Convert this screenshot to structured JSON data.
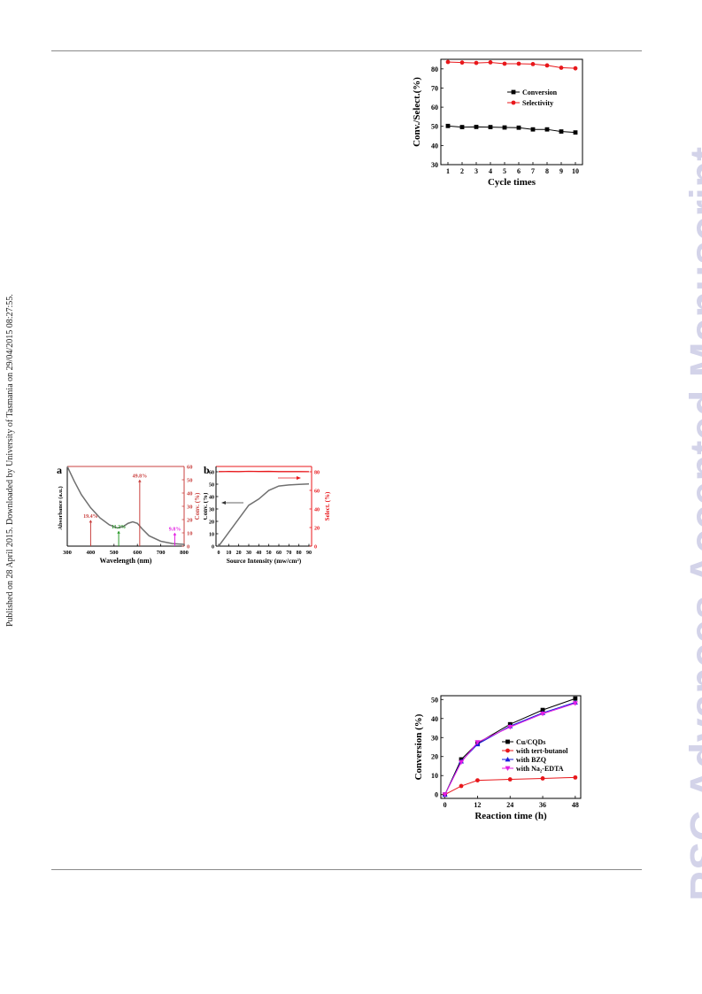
{
  "side_note": "Published on 28 April 2015. Downloaded by University of Tasmania on 29/04/2015 08:27:55.",
  "watermark": "RSC Advances Accepted Manuscript",
  "colors": {
    "black": "#000000",
    "red": "#e8171b",
    "blue": "#1a1adc",
    "magenta": "#e21ee2",
    "green": "#2a9a2a",
    "gray": "#707070",
    "spectrum_red": "#c9413f"
  },
  "chart_data": [
    {
      "id": "cycle",
      "type": "line",
      "xlabel": "Cycle times",
      "ylabel": "Conv./Select.(%)",
      "x": [
        1,
        2,
        3,
        4,
        5,
        6,
        7,
        8,
        9,
        10
      ],
      "xticks": [
        "1",
        "2",
        "3",
        "4",
        "5",
        "6",
        "7",
        "8",
        "9",
        "10"
      ],
      "ylim": [
        30,
        85
      ],
      "yticks": [
        "30",
        "40",
        "50",
        "60",
        "70",
        "80"
      ],
      "legend_position": "upper-right",
      "series": [
        {
          "name": "Conversion",
          "color": "#000000",
          "marker": "square",
          "values": [
            50.2,
            49.6,
            49.7,
            49.6,
            49.4,
            49.3,
            48.4,
            48.4,
            47.3,
            46.8
          ]
        },
        {
          "name": "Selectivity",
          "color": "#e8171b",
          "marker": "circle",
          "values": [
            83.6,
            83.3,
            83.1,
            83.4,
            82.7,
            82.7,
            82.5,
            81.8,
            80.6,
            80.3
          ]
        }
      ]
    },
    {
      "id": "panel_a",
      "type": "line",
      "panel_label": "a",
      "xlabel": "Wavelength (nm)",
      "ylabel_left": "Absorbance (a.u.)",
      "ylabel_right": "Conv. (%)",
      "xlim": [
        300,
        800
      ],
      "xticks": [
        "300",
        "400",
        "500",
        "600",
        "700",
        "800"
      ],
      "right_ylim": [
        0,
        60
      ],
      "right_yticks": [
        "0",
        "10",
        "20",
        "30",
        "40",
        "50",
        "60"
      ],
      "absorbance_curve": {
        "x": [
          300,
          330,
          360,
          400,
          440,
          480,
          515,
          540,
          560,
          580,
          600,
          620,
          650,
          700,
          750,
          800
        ],
        "y": [
          1.0,
          0.81,
          0.64,
          0.47,
          0.34,
          0.25,
          0.21,
          0.23,
          0.27,
          0.29,
          0.27,
          0.2,
          0.11,
          0.04,
          0.01,
          0.0
        ]
      },
      "bars": [
        {
          "wavelength": 400,
          "value": 19.4,
          "label": "19.4%",
          "color": "#c9413f"
        },
        {
          "wavelength": 520,
          "value": 11.2,
          "label": "11.2%",
          "color": "#2a9a2a"
        },
        {
          "wavelength": 610,
          "value": 49.8,
          "label": "49.8%",
          "color": "#c9413f"
        },
        {
          "wavelength": 760,
          "value": 9.8,
          "label": "9.8%",
          "color": "#e21ee2"
        }
      ]
    },
    {
      "id": "panel_b",
      "type": "line",
      "panel_label": "b",
      "xlabel": "Source Intensity (mw/cm²)",
      "ylabel_left": "Conv. (%)",
      "ylabel_right": "Select. (%)",
      "xlim": [
        0,
        90
      ],
      "xticks": [
        "0",
        "10",
        "20",
        "30",
        "40",
        "50",
        "60",
        "70",
        "80",
        "90"
      ],
      "left_ylim": [
        0,
        60
      ],
      "left_yticks": [
        "0",
        "10",
        "20",
        "30",
        "40",
        "50",
        "60"
      ],
      "right_ylim": [
        0,
        80
      ],
      "right_yticks": [
        "0",
        "20",
        "40",
        "60",
        "80"
      ],
      "conversion": {
        "x": [
          0,
          10,
          20,
          30,
          40,
          50,
          60,
          70,
          80,
          90
        ],
        "y": [
          0,
          11,
          22,
          33,
          38,
          45,
          48.5,
          49.4,
          49.8,
          50.2
        ]
      },
      "selectivity": {
        "x": [
          0,
          10,
          20,
          30,
          40,
          50,
          60,
          70,
          80,
          90
        ],
        "y": [
          80.2,
          80.3,
          80.2,
          80.5,
          80.3,
          80.4,
          80.2,
          80.2,
          80.2,
          80.1
        ]
      }
    },
    {
      "id": "scavenger",
      "type": "line",
      "xlabel": "Reaction time (h)",
      "ylabel": "Conversion (%)",
      "x": [
        0,
        6,
        12,
        24,
        36,
        48
      ],
      "xticks": [
        "0",
        "12",
        "24",
        "36",
        "48"
      ],
      "ylim": [
        0,
        52
      ],
      "yticks": [
        "0",
        "10",
        "20",
        "30",
        "40",
        "50"
      ],
      "legend_position": "lower-right",
      "series": [
        {
          "name": "Cu/CQDs",
          "color": "#000000",
          "marker": "square",
          "values": [
            0,
            18.5,
            27,
            37,
            44.5,
            50.5
          ]
        },
        {
          "name": "with tert-butanol",
          "color": "#e8171b",
          "marker": "circle",
          "values": [
            0,
            4.5,
            7.5,
            8,
            8.5,
            9
          ]
        },
        {
          "name": "with BZQ",
          "color": "#1a1adc",
          "marker": "triangle-up",
          "values": [
            0,
            17.5,
            26.5,
            36,
            43,
            48.5
          ]
        },
        {
          "name": "with Na₂-EDTA",
          "color": "#e21ee2",
          "marker": "triangle-down",
          "values": [
            0,
            17,
            27.5,
            35.5,
            42.5,
            48
          ]
        }
      ]
    }
  ]
}
